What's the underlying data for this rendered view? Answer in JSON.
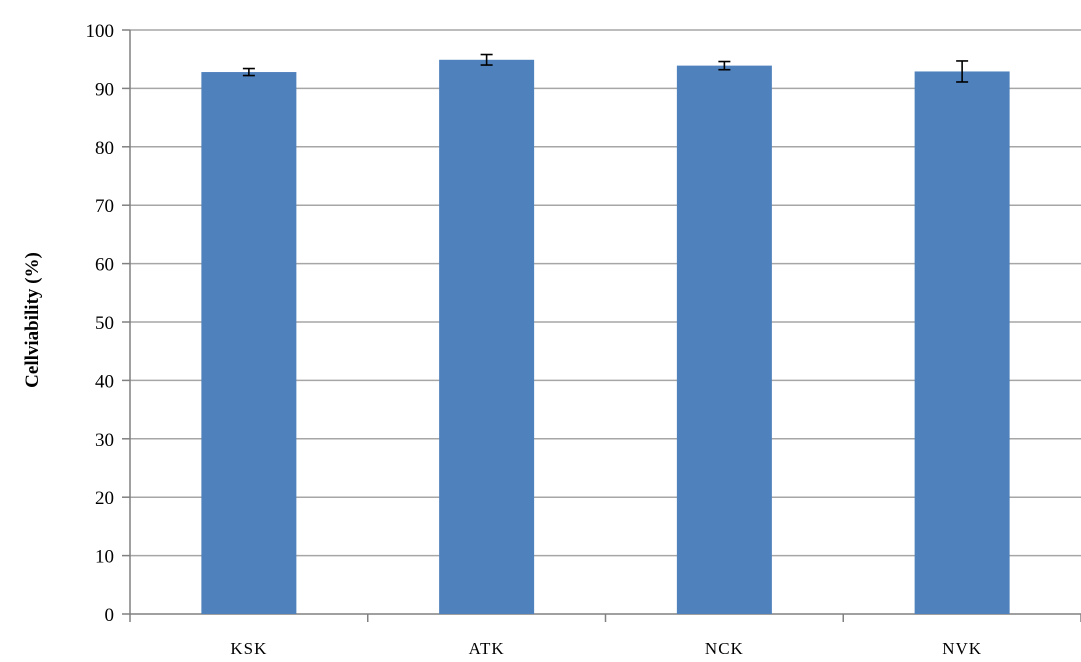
{
  "chart_data": {
    "type": "bar",
    "title": "",
    "xlabel": "",
    "ylabel": "Cellviability  (%)",
    "categories": [
      "KSK",
      "ATK",
      "NCK",
      "NVK"
    ],
    "values": [
      92.8,
      94.9,
      93.9,
      92.9
    ],
    "errors": [
      0.6,
      0.9,
      0.7,
      1.8
    ],
    "ylim": [
      0,
      100
    ],
    "yticks": [
      "0",
      "10",
      "20",
      "30",
      "40",
      "50",
      "60",
      "70",
      "80",
      "90",
      "100"
    ],
    "grid": true,
    "bar_color": "#4f81bd",
    "grid_color": "#a6a6a6"
  }
}
